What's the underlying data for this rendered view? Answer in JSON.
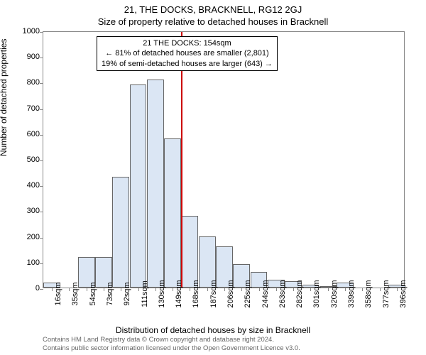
{
  "title": "21, THE DOCKS, BRACKNELL, RG12 2GJ",
  "subtitle": "Size of property relative to detached houses in Bracknell",
  "ylabel": "Number of detached properties",
  "xlabel": "Distribution of detached houses by size in Bracknell",
  "footer_line1": "Contains HM Land Registry data © Crown copyright and database right 2024.",
  "footer_line2": "Contains public sector information licensed under the Open Government Licence v3.0.",
  "chart": {
    "type": "histogram",
    "background_color": "#ffffff",
    "border_color": "#888888",
    "ylim": [
      0,
      1000
    ],
    "ytick_step": 100,
    "x_categories": [
      "16sqm",
      "35sqm",
      "54sqm",
      "73sqm",
      "92sqm",
      "111sqm",
      "130sqm",
      "149sqm",
      "168sqm",
      "187sqm",
      "206sqm",
      "225sqm",
      "244sqm",
      "263sqm",
      "282sqm",
      "301sqm",
      "320sqm",
      "339sqm",
      "358sqm",
      "377sqm",
      "396sqm"
    ],
    "values": [
      20,
      0,
      120,
      118,
      430,
      790,
      810,
      580,
      280,
      200,
      160,
      90,
      60,
      30,
      25,
      10,
      5,
      20,
      0,
      0,
      10
    ],
    "bar_fill": "#dbe6f4",
    "bar_border": "#666666",
    "marker_color": "#cc0000",
    "marker_index": 7,
    "annotation": {
      "line1": "21 THE DOCKS: 154sqm",
      "line2": "← 81% of detached houses are smaller (2,801)",
      "line3": "19% of semi-detached houses are larger (643) →"
    },
    "title_fontsize": 13,
    "label_fontsize": 12,
    "tick_fontsize": 11
  }
}
